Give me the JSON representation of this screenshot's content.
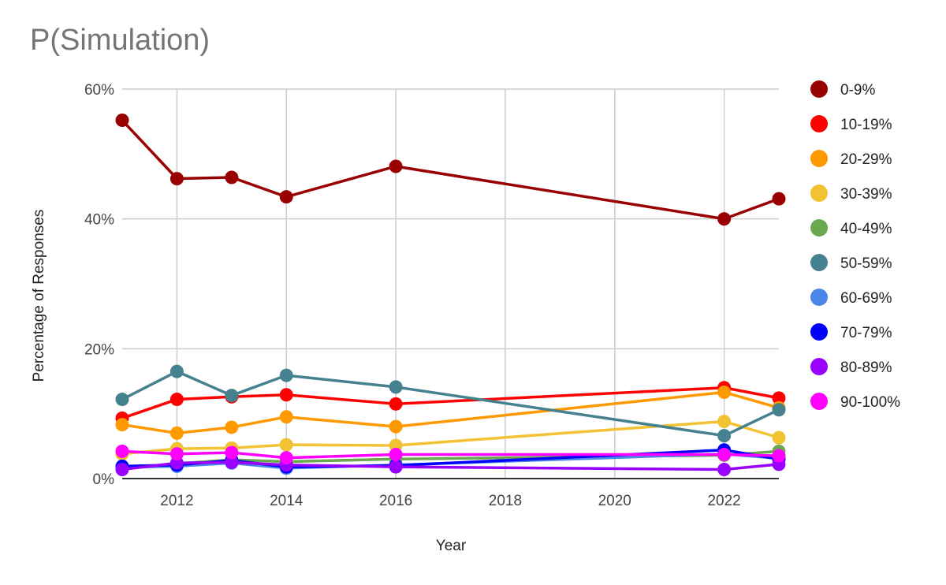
{
  "chart_data": {
    "type": "line",
    "title": "P(Simulation)",
    "xlabel": "Year",
    "ylabel": "Percentage of Responses",
    "xlim": [
      2011,
      2023
    ],
    "ylim": [
      0,
      60
    ],
    "x_ticks": [
      "2012",
      "2014",
      "2016",
      "2018",
      "2020",
      "2022"
    ],
    "x_tick_values": [
      2012,
      2014,
      2016,
      2018,
      2020,
      2022
    ],
    "y_ticks": [
      "0%",
      "20%",
      "40%",
      "60%"
    ],
    "y_tick_values": [
      0,
      20,
      40,
      60
    ],
    "grid": true,
    "legend_position": "right",
    "x": [
      2011,
      2012,
      2013,
      2014,
      2016,
      2022,
      2023
    ],
    "series": [
      {
        "name": "0-9%",
        "color": "#990000",
        "values": [
          55.2,
          46.2,
          46.4,
          43.4,
          48.1,
          40.0,
          43.1
        ]
      },
      {
        "name": "10-19%",
        "color": "#ff0000",
        "values": [
          9.3,
          12.2,
          12.6,
          12.9,
          11.5,
          14.0,
          12.4
        ]
      },
      {
        "name": "20-29%",
        "color": "#ff9900",
        "values": [
          8.3,
          7.0,
          7.9,
          9.5,
          8.0,
          13.3,
          10.9
        ]
      },
      {
        "name": "30-39%",
        "color": "#f1c232",
        "values": [
          3.8,
          4.6,
          4.7,
          5.2,
          5.1,
          8.8,
          6.3
        ]
      },
      {
        "name": "40-49%",
        "color": "#6aa84f",
        "values": [
          1.6,
          2.3,
          2.9,
          2.6,
          3.0,
          3.6,
          4.2
        ]
      },
      {
        "name": "50-59%",
        "color": "#45818e",
        "values": [
          12.2,
          16.5,
          12.8,
          15.9,
          14.1,
          6.6,
          10.6
        ]
      },
      {
        "name": "60-69%",
        "color": "#4a86e8",
        "values": [
          1.7,
          1.9,
          2.4,
          1.6,
          2.1,
          3.8,
          3.1
        ]
      },
      {
        "name": "70-79%",
        "color": "#0000ff",
        "values": [
          1.9,
          2.1,
          2.8,
          1.8,
          2.0,
          4.4,
          3.0
        ]
      },
      {
        "name": "80-89%",
        "color": "#9900ff",
        "values": [
          1.4,
          2.4,
          2.5,
          2.1,
          1.8,
          1.4,
          2.2
        ]
      },
      {
        "name": "90-100%",
        "color": "#ff00ff",
        "values": [
          4.2,
          3.8,
          4.0,
          3.2,
          3.7,
          3.7,
          3.5
        ]
      }
    ]
  }
}
